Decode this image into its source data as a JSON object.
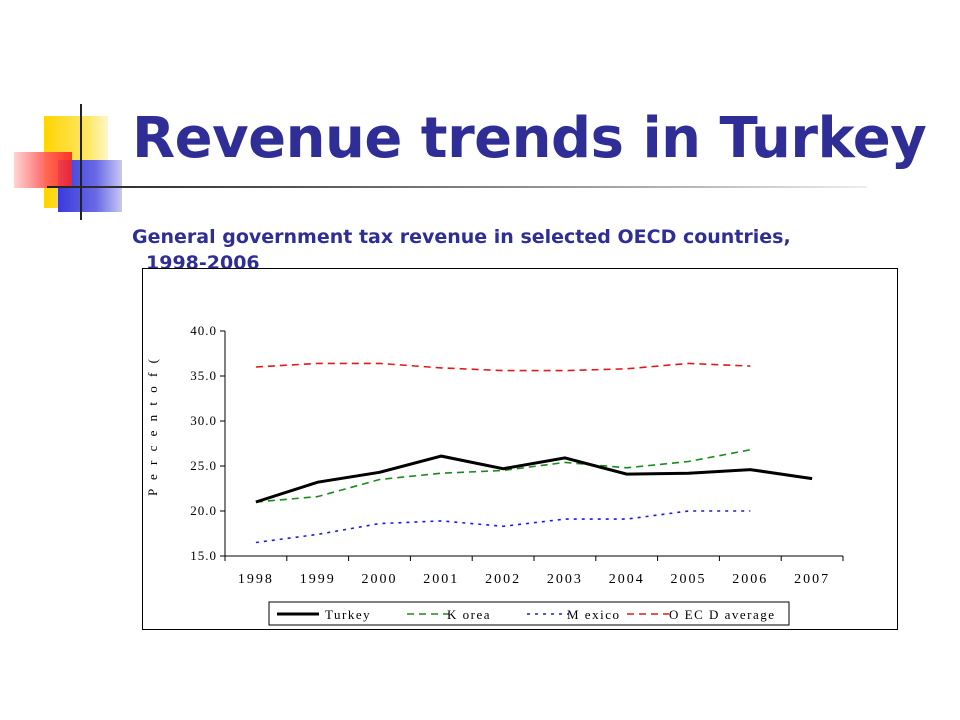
{
  "slide": {
    "title": "Revenue trends in Turkey",
    "subtitle_line1": "General government tax revenue in selected OECD countries,",
    "subtitle_line2": "1998-2006"
  },
  "colors": {
    "title": "#2e2e96",
    "turkey": "#000000",
    "korea": "#1a8a1a",
    "mexico": "#1a1ae6",
    "oecd": "#e01a1a"
  },
  "chart_data": {
    "type": "line",
    "title": "",
    "xlabel": "",
    "ylabel": "P e r c e n t  o f  (",
    "categories": [
      "1998",
      "1999",
      "2000",
      "2001",
      "2002",
      "2003",
      "2004",
      "2005",
      "2006",
      "2007"
    ],
    "ylim": [
      15.0,
      40.0
    ],
    "yticks": [
      "15.0",
      "20.0",
      "25.0",
      "30.0",
      "35.0",
      "40.0"
    ],
    "grid": false,
    "legend_position": "bottom",
    "series": [
      {
        "name": "Turkey",
        "style": "solid",
        "values": [
          21.0,
          23.2,
          24.3,
          26.1,
          24.7,
          25.9,
          24.1,
          24.2,
          24.6,
          23.6
        ]
      },
      {
        "name": "K orea",
        "style": "dash",
        "values": [
          21.0,
          21.6,
          23.5,
          24.2,
          24.5,
          25.4,
          24.8,
          25.5,
          26.8,
          null
        ]
      },
      {
        "name": "M exico",
        "style": "dot",
        "values": [
          16.5,
          17.4,
          18.6,
          18.9,
          18.3,
          19.1,
          19.1,
          20.0,
          20.0,
          null
        ]
      },
      {
        "name": "O EC D average",
        "style": "dash",
        "values": [
          36.0,
          36.4,
          36.4,
          35.9,
          35.6,
          35.6,
          35.8,
          36.4,
          36.1,
          null
        ]
      }
    ]
  }
}
